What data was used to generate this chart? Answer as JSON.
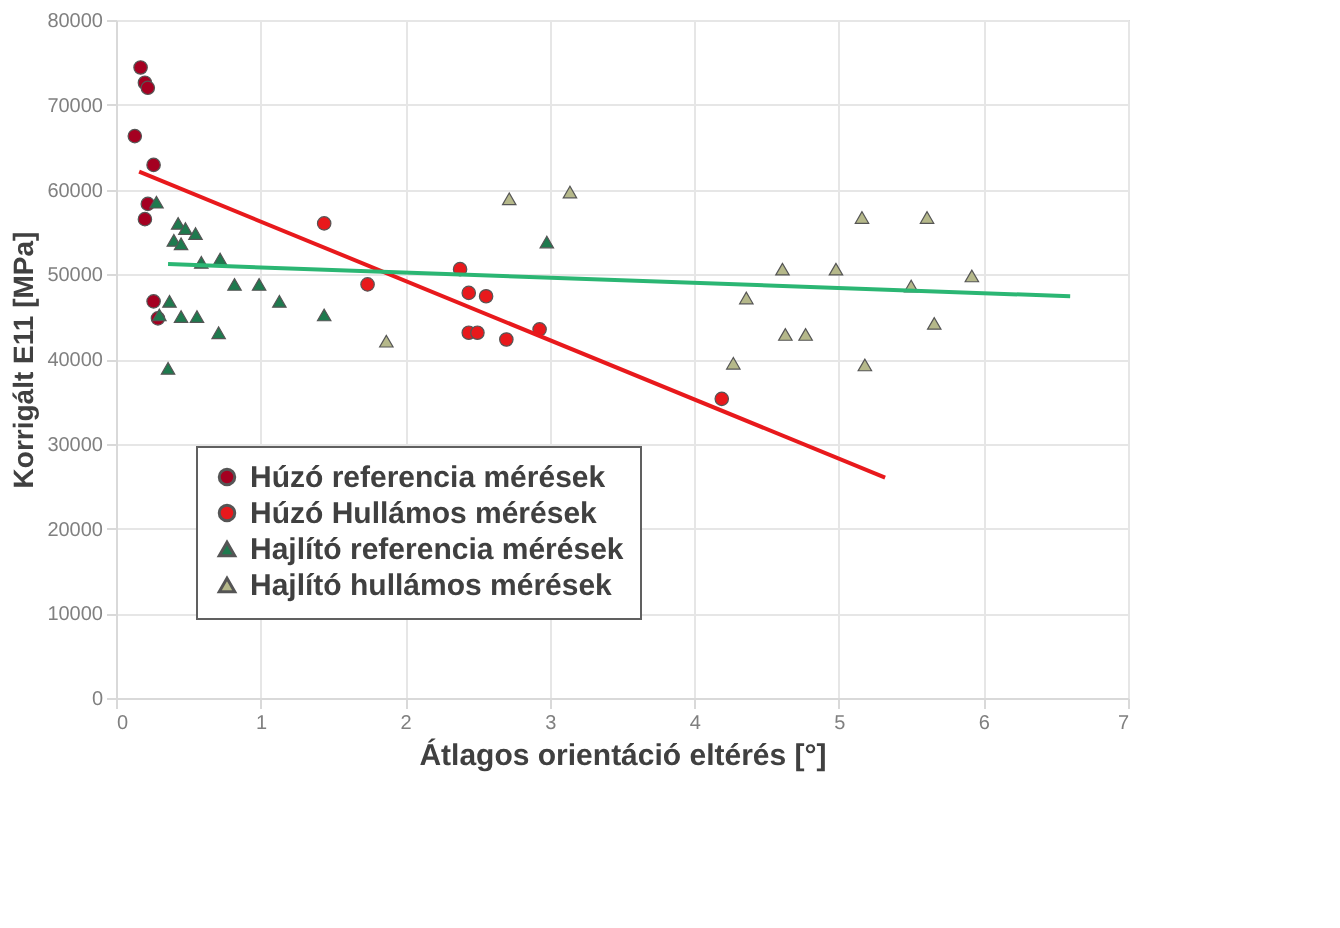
{
  "chart_data": {
    "type": "scatter",
    "xlabel": "Átlagos orientáció eltérés [°]",
    "ylabel": "Korrigált E11 [MPa]",
    "xlim": [
      0,
      7
    ],
    "xticks": [
      0,
      1,
      2,
      3,
      4,
      5,
      6,
      7
    ],
    "ylim": [
      0,
      80000
    ],
    "yticks": [
      0,
      10000,
      20000,
      30000,
      40000,
      50000,
      60000,
      70000,
      80000
    ],
    "grid": true,
    "legend": "bottom left",
    "series": [
      {
        "name": "Húzó referencia mérések",
        "marker": "circle",
        "color": "#a50021",
        "x": [
          0.17,
          0.2,
          0.22,
          0.13,
          0.26,
          0.22,
          0.2,
          0.26,
          0.29
        ],
        "values": [
          74400,
          72600,
          72000,
          66300,
          62900,
          58300,
          56500,
          46800,
          44800
        ]
      },
      {
        "name": "Húzó Hullámos mérések",
        "marker": "circle",
        "color": "#e8191c",
        "x": [
          1.44,
          1.74,
          2.38,
          2.44,
          2.56,
          2.44,
          2.5,
          2.7,
          2.93,
          4.19
        ],
        "values": [
          56000,
          48800,
          50600,
          47800,
          47400,
          43100,
          43100,
          42300,
          43500,
          35300
        ]
      },
      {
        "name": "Hajlító referencia mérések",
        "marker": "triangle",
        "color": "#1e7a4e",
        "x": [
          0.28,
          0.43,
          0.48,
          0.55,
          0.4,
          0.45,
          0.59,
          0.72,
          0.82,
          0.99,
          1.13,
          1.44,
          0.37,
          0.3,
          0.45,
          0.56,
          0.71,
          0.36,
          2.98
        ],
        "values": [
          58500,
          56000,
          55400,
          54800,
          54000,
          53600,
          51400,
          51800,
          48800,
          48800,
          46800,
          45200,
          46800,
          45200,
          45000,
          45000,
          43100,
          38900,
          53800
        ]
      },
      {
        "name": "Hajlító hullámos mérések",
        "marker": "triangle",
        "color": "#b5b88a",
        "x": [
          1.87,
          2.72,
          3.14,
          4.36,
          4.27,
          4.61,
          4.63,
          4.77,
          4.98,
          5.16,
          5.18,
          5.61,
          5.5,
          5.66,
          5.92
        ],
        "values": [
          42100,
          58900,
          59700,
          47200,
          39500,
          50600,
          42900,
          42900,
          50600,
          56700,
          39300,
          56700,
          48600,
          44200,
          49800
        ]
      },
      {
        "type": "line",
        "color": "#e8191c",
        "x": [
          0.16,
          5.32
        ],
        "values": [
          62100,
          26000
        ]
      },
      {
        "type": "line",
        "color": "#2bb673",
        "x": [
          0.36,
          6.6
        ],
        "values": [
          51200,
          47400
        ]
      }
    ]
  }
}
